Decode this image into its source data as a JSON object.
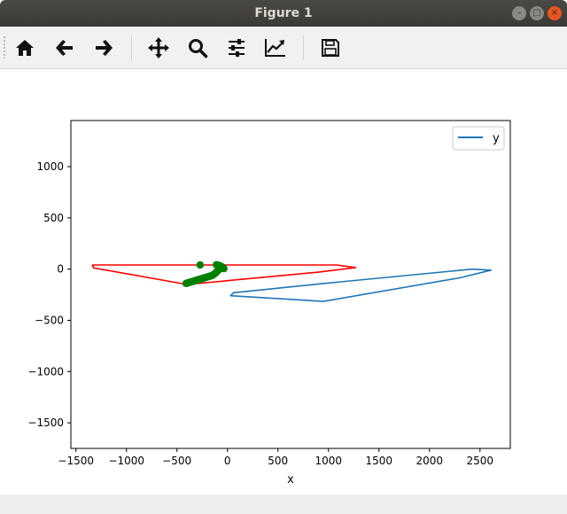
{
  "window": {
    "title": "Figure 1"
  },
  "toolbar": {
    "tools": [
      {
        "name": "home-icon"
      },
      {
        "name": "back-arrow-icon"
      },
      {
        "name": "forward-arrow-icon"
      },
      {
        "name": "pan-icon"
      },
      {
        "name": "zoom-icon"
      },
      {
        "name": "configure-subplots-icon"
      },
      {
        "name": "edit-axis-icon"
      },
      {
        "name": "save-icon"
      }
    ]
  },
  "chart_data": {
    "type": "line",
    "xlabel": "x",
    "ylabel": "",
    "xlim": [
      -1550,
      2800
    ],
    "ylim": [
      -1750,
      1450
    ],
    "xticks": [
      -1500,
      -1000,
      -500,
      0,
      500,
      1000,
      1500,
      2000,
      2500
    ],
    "xtick_labels": [
      "−1500",
      "−1000",
      "−500",
      "0",
      "500",
      "1000",
      "1500",
      "2000",
      "2500"
    ],
    "yticks": [
      1000,
      500,
      0,
      -500,
      -1000,
      -1500
    ],
    "ytick_labels": [
      "1000",
      "500",
      "0",
      "−500",
      "−1000",
      "−1500"
    ],
    "legend": {
      "position": "top-right",
      "entries": [
        "y"
      ]
    },
    "series": [
      {
        "name": "y",
        "kind": "line",
        "color": "#1f77b4",
        "points": [
          [
            2420,
            0
          ],
          [
            2610,
            -10
          ],
          [
            2300,
            -85
          ],
          [
            950,
            -315
          ],
          [
            30,
            -260
          ],
          [
            60,
            -230
          ],
          [
            960,
            -140
          ],
          [
            2420,
            0
          ]
        ]
      },
      {
        "kind": "line",
        "color": "#ff0000",
        "points": [
          [
            -1340,
            40
          ],
          [
            -1320,
            10
          ],
          [
            -1200,
            -10
          ],
          [
            -400,
            -150
          ],
          [
            900,
            -30
          ],
          [
            1270,
            15
          ],
          [
            1080,
            40
          ],
          [
            -1340,
            40
          ]
        ]
      },
      {
        "kind": "scatter",
        "color": "#008000",
        "points": [
          [
            -410,
            -140
          ],
          [
            -400,
            -137
          ],
          [
            -390,
            -134
          ],
          [
            -380,
            -131
          ],
          [
            -370,
            -128
          ],
          [
            -360,
            -125
          ],
          [
            -350,
            -122
          ],
          [
            -340,
            -119
          ],
          [
            -330,
            -116
          ],
          [
            -320,
            -113
          ],
          [
            -310,
            -110
          ],
          [
            -300,
            -107
          ],
          [
            -290,
            -104
          ],
          [
            -280,
            -101
          ],
          [
            -270,
            -98
          ],
          [
            -260,
            -95
          ],
          [
            -250,
            -92
          ],
          [
            -240,
            -89
          ],
          [
            -230,
            -86
          ],
          [
            -220,
            -83
          ],
          [
            -210,
            -80
          ],
          [
            -200,
            -77
          ],
          [
            -190,
            -74
          ],
          [
            -180,
            -71
          ],
          [
            -170,
            -68
          ],
          [
            -160,
            -65
          ],
          [
            -150,
            -62
          ],
          [
            -140,
            -55
          ],
          [
            -130,
            -48
          ],
          [
            -120,
            -40
          ],
          [
            -110,
            -30
          ],
          [
            -100,
            -20
          ],
          [
            -90,
            -10
          ],
          [
            -80,
            0
          ],
          [
            -70,
            5
          ],
          [
            -60,
            10
          ],
          [
            -55,
            15
          ],
          [
            -50,
            20
          ],
          [
            -60,
            25
          ],
          [
            -70,
            30
          ],
          [
            -80,
            35
          ],
          [
            -90,
            38
          ],
          [
            -100,
            40
          ],
          [
            -110,
            42
          ],
          [
            -270,
            40
          ],
          [
            -40,
            10
          ],
          [
            -35,
            5
          ]
        ]
      }
    ]
  }
}
